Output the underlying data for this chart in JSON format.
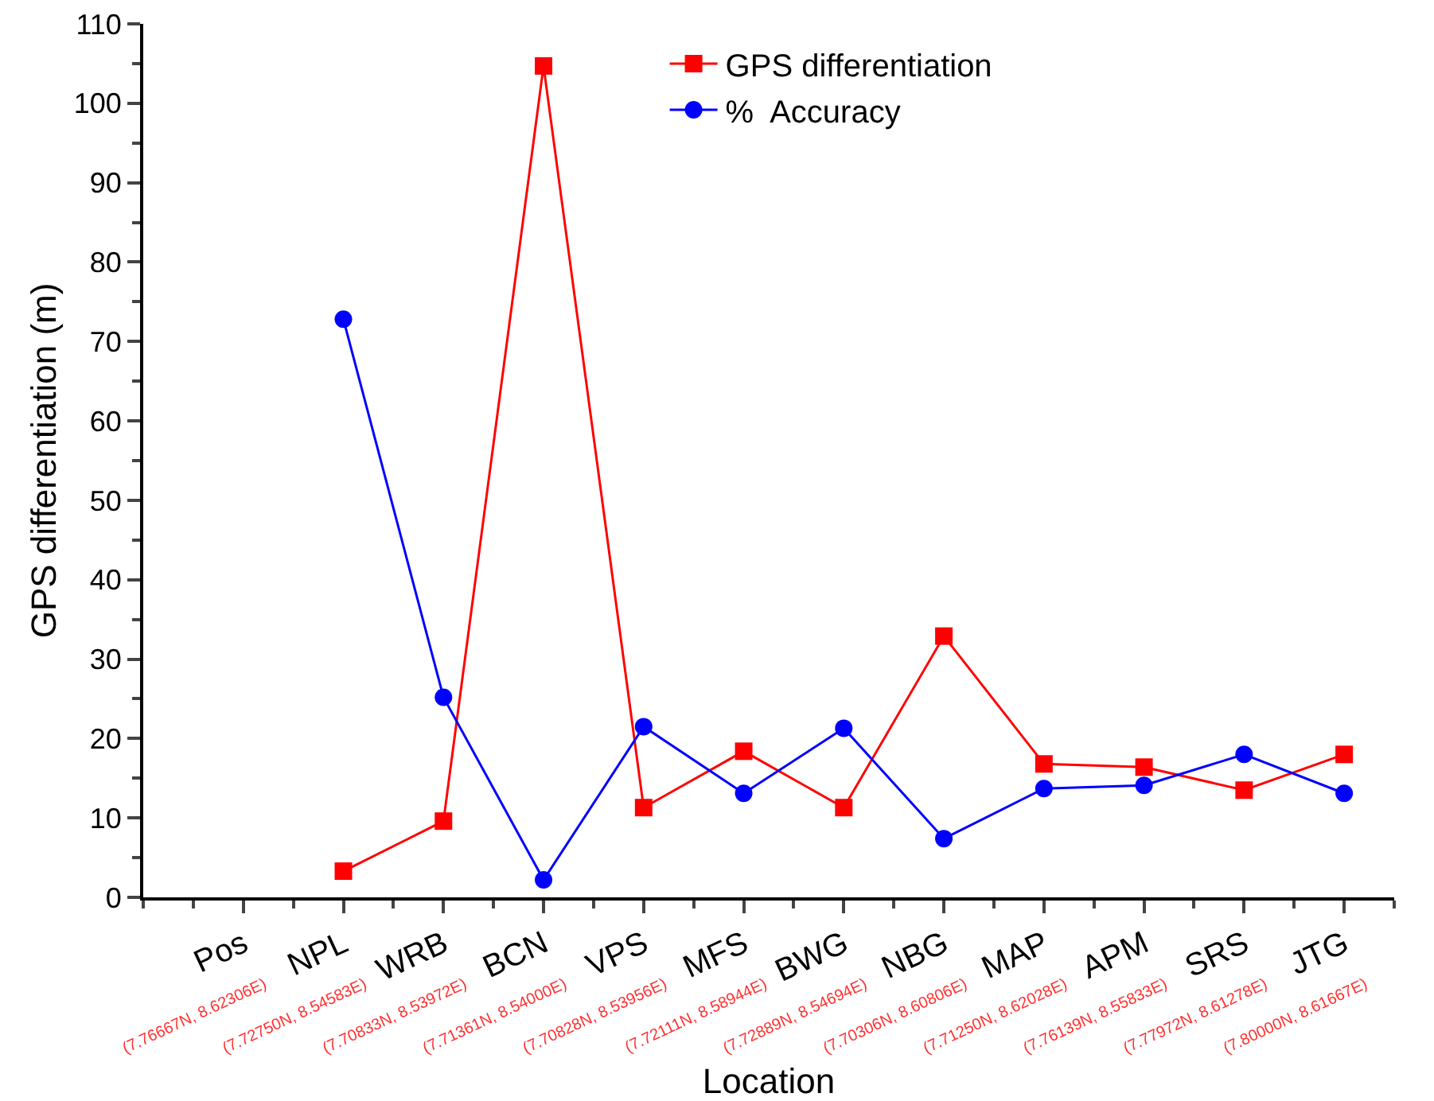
{
  "chart_data": {
    "type": "line",
    "xlabel": "Location",
    "ylabel": "GPS differentiation (m)",
    "categories": [
      "Pos\n(7.76667N, 8.62306E)",
      "NPL\n(7.72750N, 8.54583E)",
      "WRB\n(7.70833N, 8.53972E)",
      "BCN\n(7.71361N, 8.54000E)",
      "VPS\n(7.70828N, 8.53956E)",
      "MFS\n(7.72111N, 8.58944E)",
      "BWG\n(7.72889N, 8.54694E)",
      "NBG\n(7.70306N, 8.60806E)",
      "MAP\n(7.71250N, 8.62028E)",
      "APM\n(7.76139N, 8.55833E)",
      "SRS\n(7.77972N, 8.61278E)",
      "JTG\n(7.80000N, 8.61667E)"
    ],
    "series": [
      {
        "name": "GPS differentiation",
        "color": "#ff0000",
        "marker": "square",
        "values": [
          null,
          3.3,
          9.6,
          104.7,
          11.3,
          18.4,
          11.3,
          32.9,
          16.8,
          16.4,
          13.5,
          18.0
        ]
      },
      {
        "name": "%  Accuracy",
        "color": "#0000ff",
        "marker": "circle",
        "values": [
          null,
          72.8,
          25.2,
          2.2,
          21.5,
          13.1,
          21.3,
          7.4,
          13.7,
          14.1,
          18.0,
          13.1
        ]
      }
    ],
    "ylim": [
      0,
      110
    ],
    "yticks": [
      0,
      10,
      20,
      30,
      40,
      50,
      60,
      70,
      80,
      90,
      100,
      110
    ],
    "grid": false,
    "legend": "top",
    "line_style": "solid"
  }
}
